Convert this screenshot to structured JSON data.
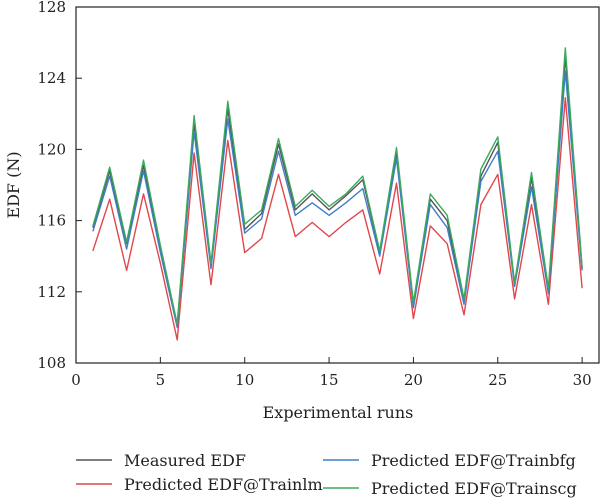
{
  "chart_data": {
    "type": "line",
    "xlabel": "Experimental runs",
    "ylabel": "EDF (N)",
    "xlim": [
      0,
      31
    ],
    "ylim": [
      108,
      128
    ],
    "xticks": [
      0,
      5,
      10,
      15,
      20,
      25,
      30
    ],
    "yticks": [
      108,
      112,
      116,
      120,
      124,
      128
    ],
    "grid": false,
    "legend_position": "bottom",
    "x": [
      1,
      2,
      3,
      4,
      5,
      6,
      7,
      8,
      9,
      10,
      11,
      12,
      13,
      14,
      15,
      16,
      17,
      18,
      19,
      20,
      21,
      22,
      23,
      24,
      25,
      26,
      27,
      28,
      29,
      30
    ],
    "series": [
      {
        "name": "Measured EDF",
        "color": "#555555",
        "values": [
          115.6,
          118.8,
          114.7,
          119.1,
          114.5,
          110.1,
          121.4,
          113.5,
          122.3,
          115.5,
          116.4,
          120.3,
          116.6,
          117.5,
          116.6,
          117.4,
          118.3,
          114.2,
          119.8,
          111.2,
          117.2,
          116.0,
          111.4,
          118.5,
          120.4,
          112.4,
          118.4,
          112.0,
          125.2,
          113.3
        ]
      },
      {
        "name": "Predicted EDF@Trainlm",
        "color": "#e0474c",
        "values": [
          114.3,
          117.2,
          113.2,
          117.5,
          113.6,
          109.3,
          119.8,
          112.4,
          120.5,
          114.2,
          115.0,
          118.6,
          115.1,
          115.9,
          115.1,
          115.9,
          116.6,
          113.0,
          118.1,
          110.5,
          115.7,
          114.7,
          110.7,
          116.9,
          118.6,
          111.6,
          116.9,
          111.3,
          122.9,
          112.2
        ]
      },
      {
        "name": "Predicted EDF@Trainbfg",
        "color": "#3f7fc6",
        "values": [
          115.4,
          118.5,
          114.4,
          118.8,
          114.2,
          110.0,
          121.0,
          113.3,
          121.7,
          115.3,
          116.1,
          119.9,
          116.3,
          117.0,
          116.3,
          117.0,
          117.8,
          114.0,
          119.5,
          111.1,
          116.9,
          115.6,
          111.3,
          118.2,
          119.9,
          112.3,
          117.9,
          111.9,
          124.4,
          113.2
        ]
      },
      {
        "name": "Predicted EDF@Trainscg",
        "color": "#3caa5e",
        "values": [
          115.7,
          119.0,
          114.8,
          119.4,
          114.6,
          110.2,
          121.9,
          113.6,
          122.7,
          115.8,
          116.6,
          120.6,
          116.8,
          117.7,
          116.8,
          117.5,
          118.5,
          114.3,
          120.1,
          111.4,
          117.5,
          116.3,
          111.6,
          118.9,
          120.7,
          112.5,
          118.7,
          112.2,
          125.7,
          113.4
        ]
      }
    ]
  }
}
